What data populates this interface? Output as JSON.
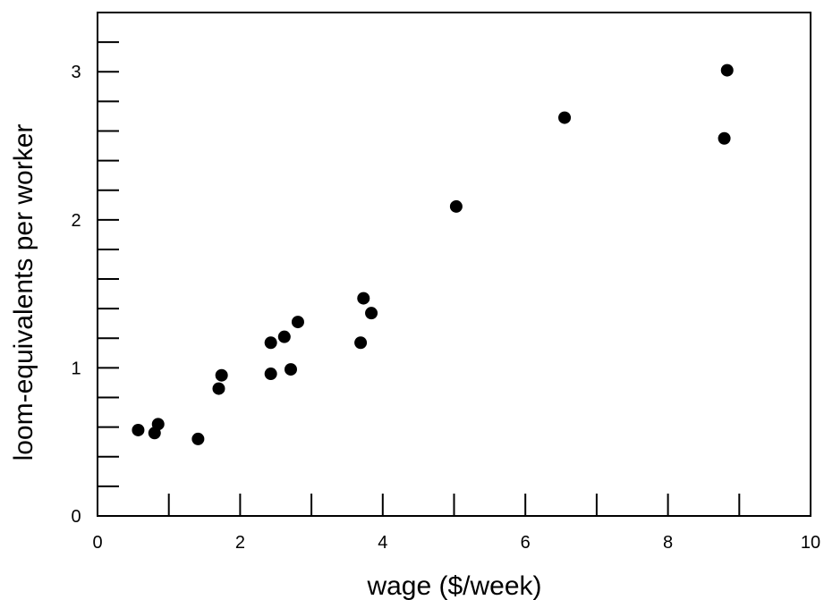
{
  "chart_data": {
    "type": "scatter",
    "title": "",
    "xlabel": "wage ($/week)",
    "ylabel": "loom-equivalents per worker",
    "xlim": [
      0,
      10
    ],
    "ylim": [
      0,
      3.4
    ],
    "x_major_ticks": [
      0,
      2,
      4,
      6,
      8,
      10
    ],
    "x_minor_ticks": [
      1,
      3,
      5,
      7,
      9
    ],
    "y_major_ticks": [
      0,
      1,
      2,
      3
    ],
    "y_minor_ticks": [
      0.2,
      0.4,
      0.6,
      0.8,
      1.2,
      1.4,
      1.6,
      1.8,
      2.2,
      2.4,
      2.6,
      2.8,
      3.2
    ],
    "x_tick_labels": [
      "0",
      "2",
      "4",
      "6",
      "8",
      "10"
    ],
    "y_tick_labels": [
      "0",
      "1",
      "2",
      "3"
    ],
    "grid": false,
    "legend": "none",
    "marker_color": "#000000",
    "points": [
      {
        "x": 0.57,
        "y": 0.58
      },
      {
        "x": 0.8,
        "y": 0.56
      },
      {
        "x": 0.85,
        "y": 0.62
      },
      {
        "x": 1.41,
        "y": 0.52
      },
      {
        "x": 1.7,
        "y": 0.86
      },
      {
        "x": 1.74,
        "y": 0.95
      },
      {
        "x": 2.43,
        "y": 0.96
      },
      {
        "x": 2.43,
        "y": 1.17
      },
      {
        "x": 2.62,
        "y": 1.21
      },
      {
        "x": 2.71,
        "y": 0.99
      },
      {
        "x": 2.81,
        "y": 1.31
      },
      {
        "x": 3.69,
        "y": 1.17
      },
      {
        "x": 3.73,
        "y": 1.47
      },
      {
        "x": 3.84,
        "y": 1.37
      },
      {
        "x": 5.03,
        "y": 2.09
      },
      {
        "x": 6.55,
        "y": 2.69
      },
      {
        "x": 8.79,
        "y": 2.55
      },
      {
        "x": 8.83,
        "y": 3.01
      }
    ]
  }
}
